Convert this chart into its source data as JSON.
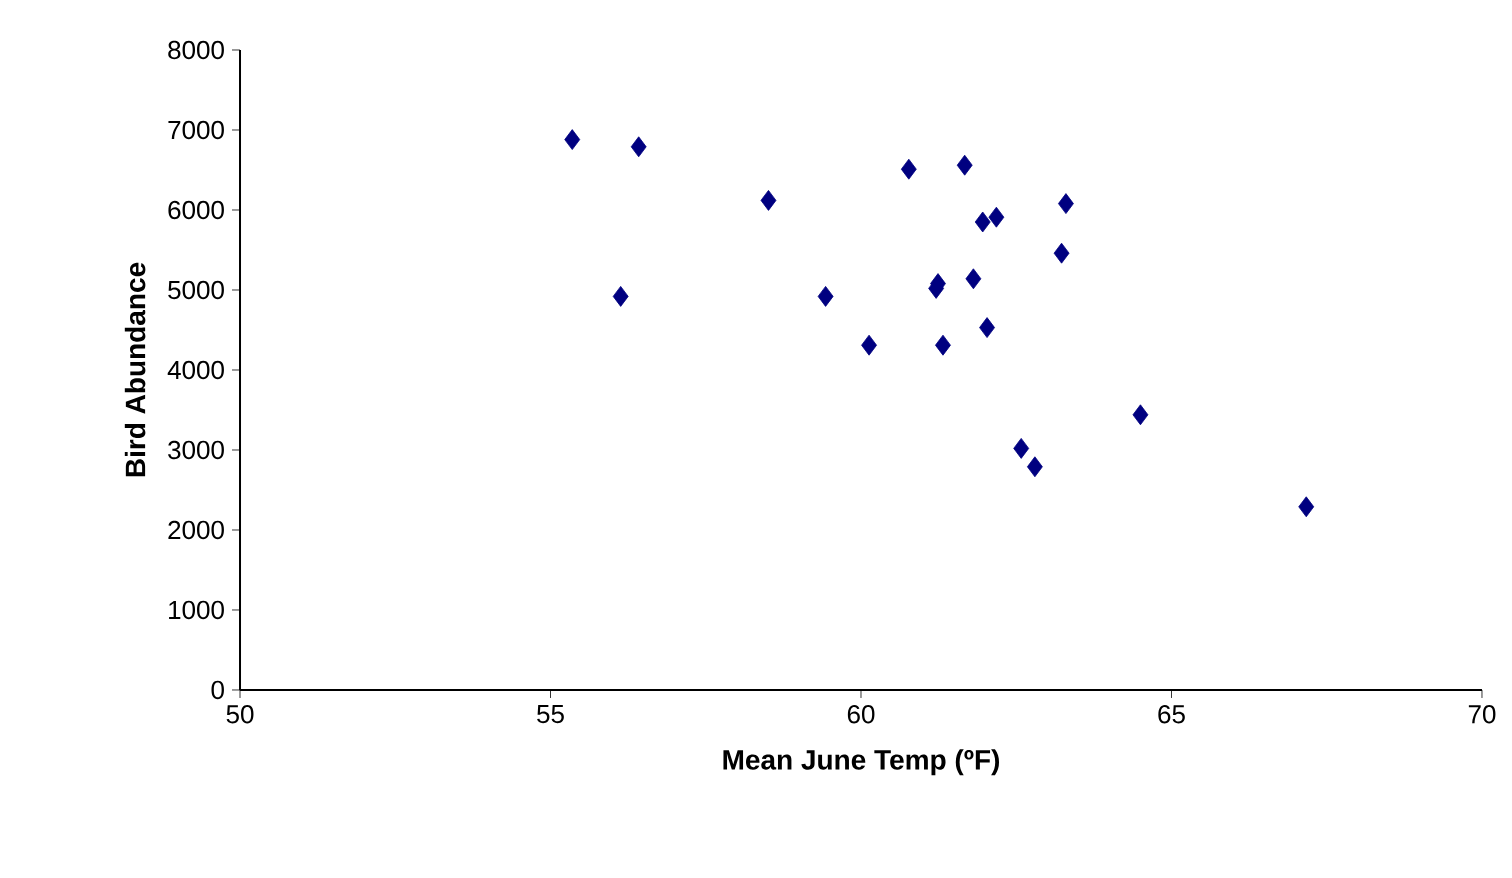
{
  "chart_data": {
    "type": "scatter",
    "xlabel": "Mean June Temp (ºF)",
    "ylabel": "Bird Abundance",
    "x": [
      55.35,
      56.42,
      58.51,
      56.13,
      59.43,
      60.77,
      61.67,
      60.13,
      61.32,
      61.24,
      61.21,
      61.81,
      62.03,
      61.96,
      62.18,
      63.3,
      63.23,
      64.5,
      62.58,
      62.8,
      67.17
    ],
    "values": [
      6880,
      6790,
      6120,
      4920,
      4920,
      6510,
      6560,
      4310,
      4310,
      5080,
      5020,
      5140,
      4530,
      5850,
      5910,
      6080,
      5460,
      3440,
      3020,
      2790,
      2290
    ],
    "color": "#000080",
    "marker": "diamond",
    "grid": false,
    "xlim": [
      50,
      70
    ],
    "xticks": [
      50,
      55,
      60,
      65,
      70
    ],
    "ylim": [
      0,
      8000
    ],
    "yticks": [
      0,
      1000,
      2000,
      3000,
      4000,
      5000,
      6000,
      7000,
      8000
    ]
  }
}
